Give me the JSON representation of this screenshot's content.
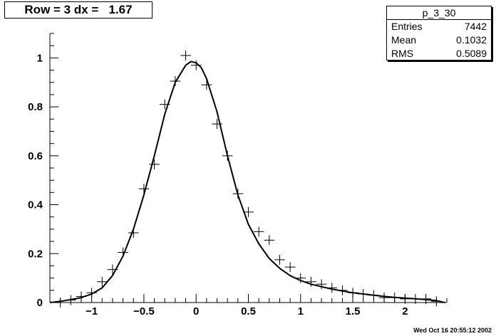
{
  "title": "Row = 3 dx =   1.67",
  "stats": {
    "name": "p_3_30",
    "rows": [
      {
        "label": "Entries",
        "value": "7442"
      },
      {
        "label": "Mean",
        "value": "0.1032"
      },
      {
        "label": "RMS",
        "value": "0.5089"
      }
    ]
  },
  "footer": "Wed Oct 16 20:55:12 2002",
  "chart_data": {
    "type": "scatter",
    "title": "Row = 3 dx =   1.67",
    "xlim": [
      -1.4,
      2.4
    ],
    "ylim": [
      0,
      1.1
    ],
    "xticks": [
      -1,
      -0.5,
      0,
      0.5,
      1,
      1.5,
      2
    ],
    "xtick_labels": [
      "−1",
      "−0.5",
      "0",
      "0.5",
      "1",
      "1.5",
      "2"
    ],
    "yticks": [
      0,
      0.2,
      0.4,
      0.6,
      0.8,
      1
    ],
    "ytick_labels": [
      "0",
      "0.2",
      "0.4",
      "0.6",
      "0.8",
      "1"
    ],
    "grid": false,
    "series": [
      {
        "kind": "points",
        "bin_width": 0.1,
        "x": [
          -1.3,
          -1.2,
          -1.1,
          -1.0,
          -0.9,
          -0.8,
          -0.7,
          -0.6,
          -0.5,
          -0.4,
          -0.3,
          -0.2,
          -0.1,
          0.0,
          0.1,
          0.2,
          0.3,
          0.4,
          0.5,
          0.6,
          0.7,
          0.8,
          0.9,
          1.0,
          1.1,
          1.2,
          1.3,
          1.4,
          1.5,
          1.6,
          1.7,
          1.8,
          1.9,
          2.0,
          2.1,
          2.2,
          2.3
        ],
        "y": [
          0.0,
          0.01,
          0.025,
          0.04,
          0.085,
          0.135,
          0.205,
          0.285,
          0.465,
          0.565,
          0.81,
          0.905,
          1.01,
          0.97,
          0.89,
          0.73,
          0.6,
          0.445,
          0.37,
          0.29,
          0.255,
          0.175,
          0.145,
          0.1,
          0.085,
          0.075,
          0.06,
          0.05,
          0.04,
          0.035,
          0.03,
          0.02,
          0.02,
          0.015,
          0.015,
          0.015,
          0.005
        ]
      },
      {
        "kind": "curve",
        "x": [
          -1.4,
          -1.3,
          -1.2,
          -1.1,
          -1.0,
          -0.9,
          -0.8,
          -0.7,
          -0.6,
          -0.5,
          -0.4,
          -0.3,
          -0.2,
          -0.1,
          -0.05,
          0.0,
          0.05,
          0.1,
          0.2,
          0.3,
          0.4,
          0.5,
          0.6,
          0.7,
          0.8,
          0.9,
          1.0,
          1.1,
          1.2,
          1.3,
          1.4,
          1.5,
          1.6,
          1.7,
          1.8,
          1.9,
          2.0,
          2.1,
          2.2,
          2.3,
          2.38
        ],
        "y": [
          0.0,
          0.005,
          0.012,
          0.02,
          0.035,
          0.06,
          0.11,
          0.19,
          0.3,
          0.44,
          0.6,
          0.77,
          0.9,
          0.97,
          0.985,
          0.98,
          0.96,
          0.915,
          0.78,
          0.6,
          0.44,
          0.32,
          0.24,
          0.18,
          0.14,
          0.11,
          0.09,
          0.075,
          0.065,
          0.055,
          0.047,
          0.04,
          0.035,
          0.03,
          0.025,
          0.021,
          0.018,
          0.015,
          0.012,
          0.008,
          0.0
        ]
      }
    ]
  }
}
